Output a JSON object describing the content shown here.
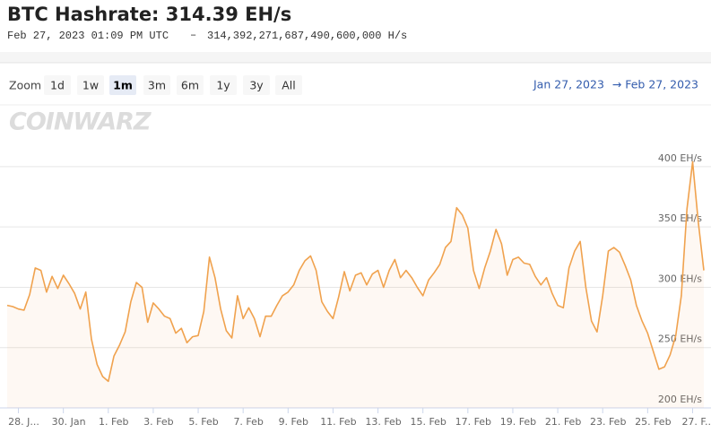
{
  "header": {
    "title": "BTC Hashrate: 314.39 EH/s",
    "subtitle_date": "Feb 27, 2023 01:09 PM UTC",
    "subtitle_sep": "–",
    "subtitle_value": "314,392,271,687,490,600,000 H/s"
  },
  "toolbar": {
    "zoom_label": "Zoom",
    "buttons": [
      "1d",
      "1w",
      "1m",
      "3m",
      "6m",
      "1y",
      "3y",
      "All"
    ],
    "selected_index": 2,
    "range_from": "Jan 27, 2023",
    "range_arrow": "→",
    "range_to": "Feb 27, 2023"
  },
  "watermark": "COINWARZ",
  "chart_data": {
    "type": "line",
    "series": [
      {
        "color": "#f0a24e",
        "values": [
          285,
          284,
          282,
          281,
          294,
          316,
          314,
          296,
          309,
          299,
          310,
          303,
          295,
          282,
          296,
          257,
          236,
          226,
          222,
          243,
          252,
          263,
          288,
          304,
          300,
          271,
          287,
          282,
          276,
          274,
          262,
          266,
          254,
          259,
          260,
          280,
          325,
          308,
          282,
          264,
          258,
          293,
          274,
          283,
          274,
          259,
          276,
          276,
          285,
          293,
          296,
          302,
          314,
          322,
          326,
          314,
          288,
          280,
          274,
          292,
          313,
          297,
          310,
          312,
          302,
          311,
          314,
          300,
          314,
          323,
          308,
          314,
          308,
          300,
          293,
          306,
          312,
          319,
          333,
          338,
          366,
          360,
          349,
          314,
          299,
          316,
          330,
          348,
          336,
          310,
          323,
          325,
          320,
          319,
          309,
          302,
          308,
          295,
          285,
          283,
          316,
          330,
          338,
          300,
          272,
          263,
          293,
          330,
          333,
          329,
          318,
          306,
          285,
          272,
          262,
          247,
          232,
          234,
          244,
          260,
          293,
          365,
          404,
          355,
          314
        ]
      }
    ],
    "xlim": [
      0,
      124
    ],
    "xticks": [
      {
        "value": 2,
        "label": "28. J..."
      },
      {
        "value": 10,
        "label": "30. Jan"
      },
      {
        "value": 18,
        "label": "1. Feb"
      },
      {
        "value": 26,
        "label": "3. Feb"
      },
      {
        "value": 34,
        "label": "5. Feb"
      },
      {
        "value": 42,
        "label": "7. Feb"
      },
      {
        "value": 50,
        "label": "9. Feb"
      },
      {
        "value": 58,
        "label": "11. Feb"
      },
      {
        "value": 66,
        "label": "13. Feb"
      },
      {
        "value": 74,
        "label": "15. Feb"
      },
      {
        "value": 82,
        "label": "17. Feb"
      },
      {
        "value": 90,
        "label": "19. Feb"
      },
      {
        "value": 98,
        "label": "21. Feb"
      },
      {
        "value": 106,
        "label": "23. Feb"
      },
      {
        "value": 114,
        "label": "25. Feb"
      },
      {
        "value": 122,
        "label": "27. F..."
      }
    ],
    "ylim": [
      200,
      420
    ],
    "yticks": [
      {
        "value": 200,
        "label": "200 EH/s"
      },
      {
        "value": 250,
        "label": "250 EH/s"
      },
      {
        "value": 300,
        "label": "300 EH/s"
      },
      {
        "value": 350,
        "label": "350 EH/s"
      },
      {
        "value": 400,
        "label": "400 EH/s"
      }
    ],
    "grid": true
  }
}
